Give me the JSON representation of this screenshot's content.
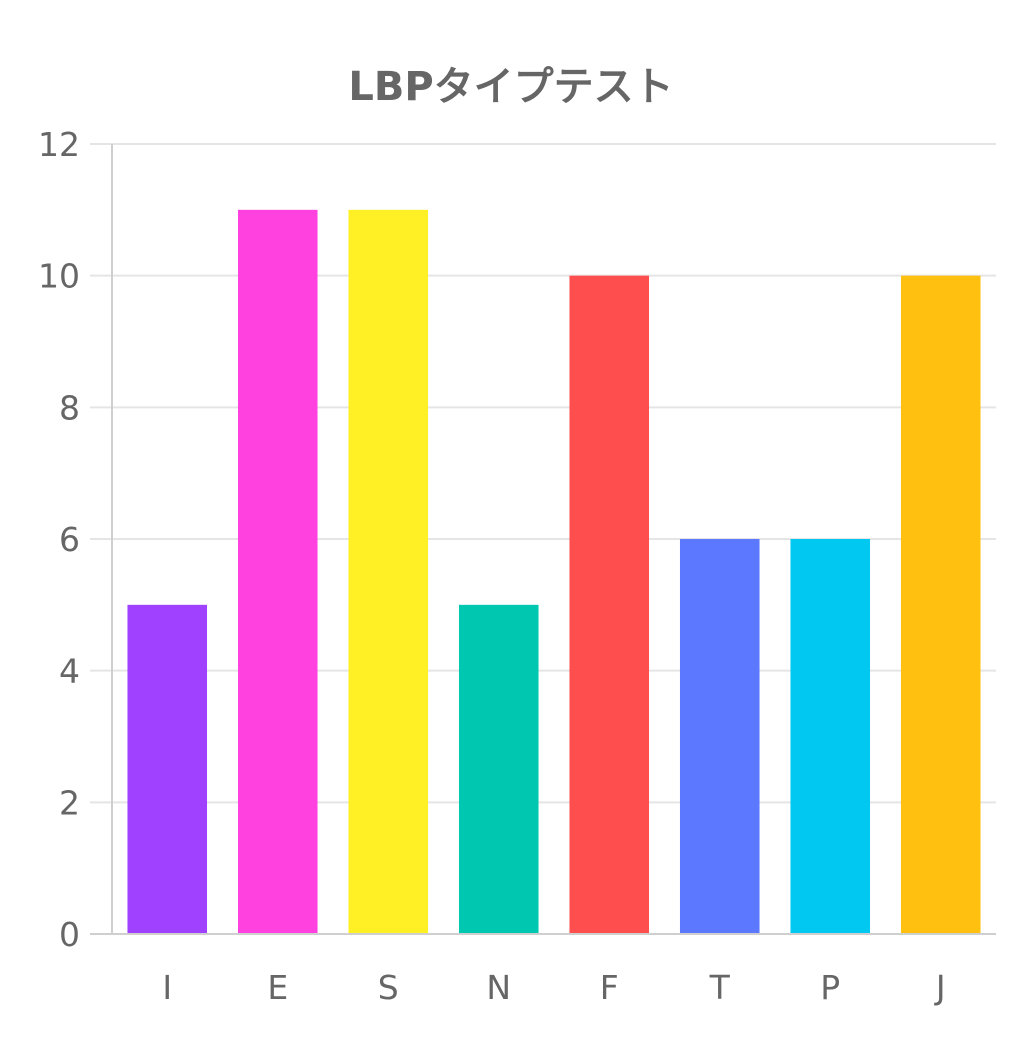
{
  "chart_data": {
    "type": "bar",
    "title": "LBPタイプテスト",
    "xlabel": "",
    "ylabel": "",
    "categories": [
      "I",
      "E",
      "S",
      "N",
      "F",
      "T",
      "P",
      "J"
    ],
    "values": [
      5,
      11,
      11,
      5,
      10,
      6,
      6,
      10
    ],
    "colors": [
      "#a041ff",
      "#ff41e0",
      "#fff025",
      "#00c8b0",
      "#ff4e4e",
      "#5b78ff",
      "#00c8f0",
      "#ffc010"
    ],
    "ylim": [
      0,
      12
    ],
    "yticks": [
      "0",
      "2",
      "4",
      "6",
      "8",
      "10",
      "12"
    ],
    "grid": true,
    "legend": "none"
  }
}
